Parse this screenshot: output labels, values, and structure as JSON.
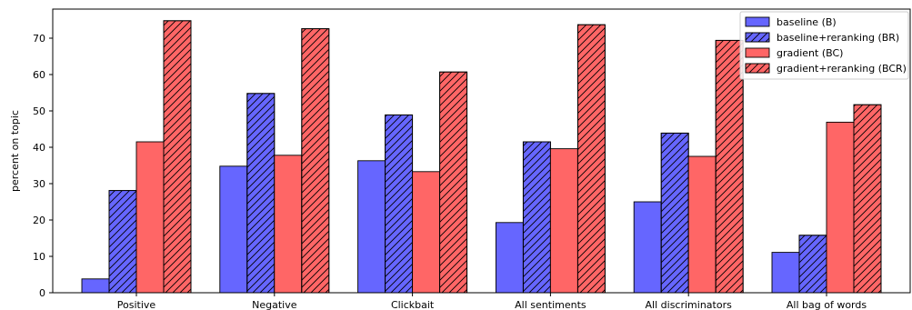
{
  "chart_data": {
    "type": "bar",
    "title": "",
    "xlabel": "",
    "ylabel": "percent on topic",
    "ylim": [
      0,
      78
    ],
    "yticks": [
      0,
      10,
      20,
      30,
      40,
      50,
      60,
      70
    ],
    "grid": false,
    "legend_position": "top-right",
    "categories": [
      "Positive",
      "Negative",
      "Clickbait",
      "All sentiments",
      "All discriminators",
      "All bag of words"
    ],
    "series": [
      {
        "name": "baseline (B)",
        "color": "#6666ff",
        "hatch": false,
        "values": [
          3.8,
          34.8,
          36.3,
          19.3,
          25.0,
          11.1
        ]
      },
      {
        "name": "baseline+reranking (BR)",
        "color": "#6666ff",
        "hatch": true,
        "values": [
          28.1,
          54.8,
          48.9,
          41.5,
          43.9,
          15.8
        ]
      },
      {
        "name": "gradient (BC)",
        "color": "#ff6666",
        "hatch": false,
        "values": [
          41.5,
          37.8,
          33.3,
          39.6,
          37.5,
          46.9
        ]
      },
      {
        "name": "gradient+reranking (BCR)",
        "color": "#ff6666",
        "hatch": true,
        "values": [
          74.8,
          72.6,
          60.7,
          73.7,
          69.4,
          51.7
        ]
      }
    ]
  }
}
